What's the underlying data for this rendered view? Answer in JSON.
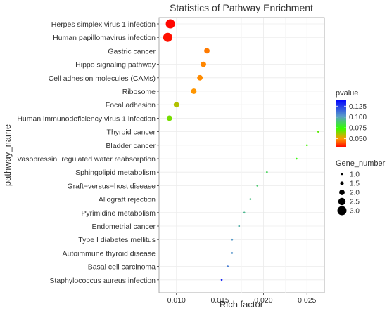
{
  "chart_data": {
    "type": "scatter",
    "title": "Statistics of Pathway Enrichment",
    "xlabel": "Rich factor",
    "ylabel": "pathway_name",
    "xlim": [
      0.008,
      0.027
    ],
    "xticks": [
      "0.010",
      "0.015",
      "0.020",
      "0.025"
    ],
    "xtick_values": [
      0.01,
      0.015,
      0.02,
      0.025
    ],
    "grid": true,
    "legend_position": "right",
    "categories": [
      "Herpes simplex virus 1 infection",
      "Human papillomavirus infection",
      "Gastric cancer",
      "Hippo signaling pathway",
      "Cell adhesion molecules (CAMs)",
      "Ribosome",
      "Focal adhesion",
      "Human immunodeficiency virus 1 infection",
      "Thyroid cancer",
      "Bladder cancer",
      "Vasopressin−regulated water reabsorption",
      "Sphingolipid metabolism",
      "Graft−versus−host disease",
      "Allograft rejection",
      "Pyrimidine metabolism",
      "Endometrial cancer",
      "Type I diabetes mellitus",
      "Autoimmune thyroid disease",
      "Basal cell carcinoma",
      "Staphylococcus aureus infection"
    ],
    "points": [
      {
        "rich_factor": 0.0093,
        "gene_number": 3,
        "pvalue": 0.031
      },
      {
        "rich_factor": 0.009,
        "gene_number": 3,
        "pvalue": 0.033
      },
      {
        "rich_factor": 0.0135,
        "gene_number": 2,
        "pvalue": 0.052
      },
      {
        "rich_factor": 0.0131,
        "gene_number": 2,
        "pvalue": 0.054
      },
      {
        "rich_factor": 0.0127,
        "gene_number": 2,
        "pvalue": 0.055
      },
      {
        "rich_factor": 0.012,
        "gene_number": 2,
        "pvalue": 0.057
      },
      {
        "rich_factor": 0.01,
        "gene_number": 2,
        "pvalue": 0.068
      },
      {
        "rich_factor": 0.0092,
        "gene_number": 2,
        "pvalue": 0.076
      },
      {
        "rich_factor": 0.0263,
        "gene_number": 1,
        "pvalue": 0.08
      },
      {
        "rich_factor": 0.025,
        "gene_number": 1,
        "pvalue": 0.083
      },
      {
        "rich_factor": 0.0238,
        "gene_number": 1,
        "pvalue": 0.086
      },
      {
        "rich_factor": 0.0204,
        "gene_number": 1,
        "pvalue": 0.097
      },
      {
        "rich_factor": 0.0193,
        "gene_number": 1,
        "pvalue": 0.1
      },
      {
        "rich_factor": 0.0185,
        "gene_number": 1,
        "pvalue": 0.103
      },
      {
        "rich_factor": 0.0178,
        "gene_number": 1,
        "pvalue": 0.105
      },
      {
        "rich_factor": 0.0172,
        "gene_number": 1,
        "pvalue": 0.108
      },
      {
        "rich_factor": 0.0164,
        "gene_number": 1,
        "pvalue": 0.113
      },
      {
        "rich_factor": 0.0164,
        "gene_number": 1,
        "pvalue": 0.114
      },
      {
        "rich_factor": 0.0159,
        "gene_number": 1,
        "pvalue": 0.118
      },
      {
        "rich_factor": 0.0152,
        "gene_number": 1,
        "pvalue": 0.135
      }
    ],
    "color_legend": {
      "title": "pvalue",
      "ticks": [
        "0.125",
        "0.100",
        "0.075",
        "0.050"
      ],
      "tick_values": [
        0.125,
        0.1,
        0.075,
        0.05
      ],
      "range": [
        0.03,
        0.14
      ],
      "colors": [
        "#ff0000",
        "#ff9900",
        "#33ff00",
        "#5b9ec8",
        "#0000ff"
      ]
    },
    "size_legend": {
      "title": "Gene_number",
      "labels": [
        "1.0",
        "1.5",
        "2.0",
        "2.5",
        "3.0"
      ],
      "values": [
        1.0,
        1.5,
        2.0,
        2.5,
        3.0
      ]
    }
  }
}
